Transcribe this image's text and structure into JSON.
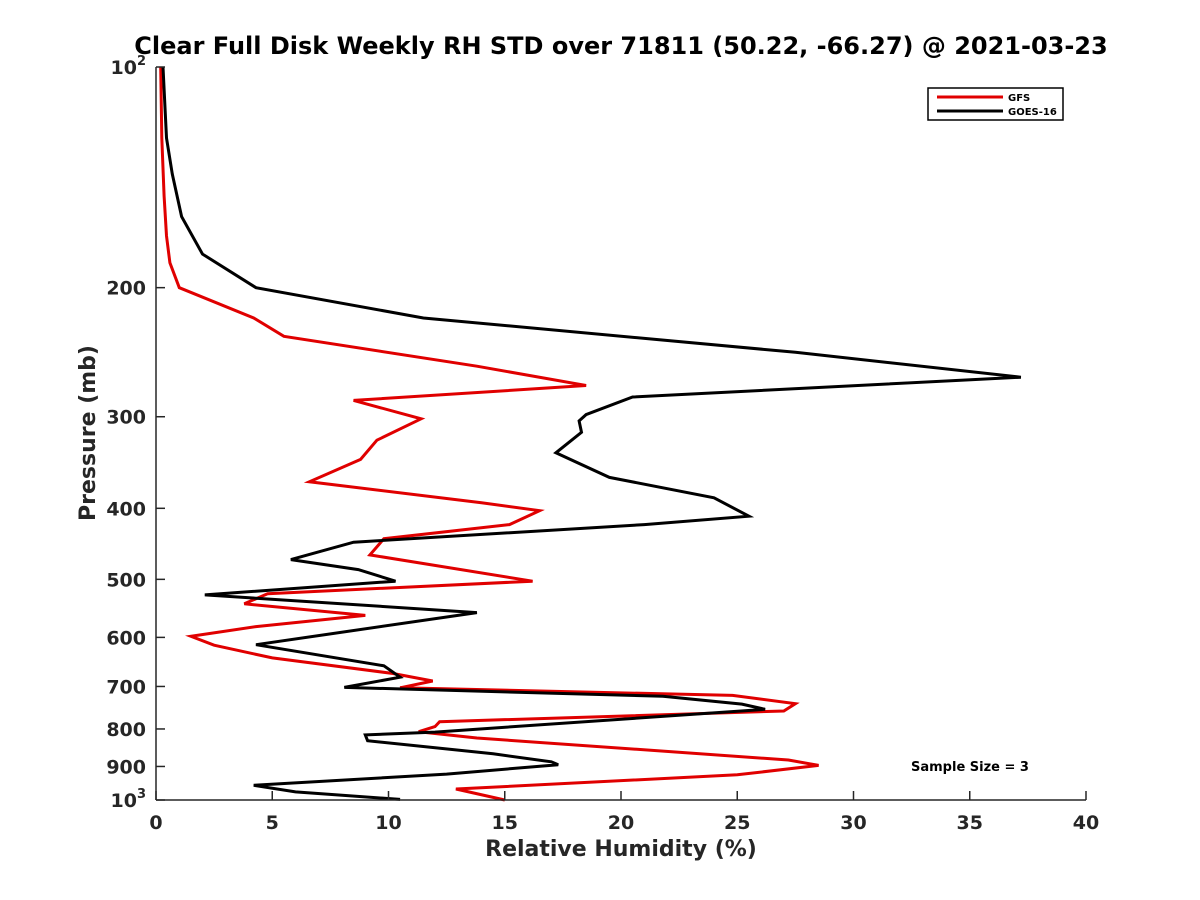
{
  "chart_data": {
    "type": "line",
    "title": "Clear Full Disk Weekly RH STD over 71811 (50.22, -66.27) @ 2021-03-23",
    "xlabel": "Relative Humidity (%)",
    "ylabel": "Pressure (mb)",
    "xlim": [
      0,
      40
    ],
    "ylim": [
      100,
      1000
    ],
    "yscale": "log",
    "yreversed": true,
    "grid": false,
    "legend_position": "top-right",
    "x_ticks": [
      0,
      5,
      10,
      15,
      20,
      25,
      30,
      35,
      40
    ],
    "x_tick_labels": [
      "0",
      "5",
      "10",
      "15",
      "20",
      "25",
      "30",
      "35",
      "40"
    ],
    "y_ticks": [
      100,
      200,
      300,
      400,
      500,
      600,
      700,
      800,
      900,
      1000
    ],
    "y_tick_labels": [
      {
        "base": "10",
        "exp": "2"
      },
      {
        "base": "200"
      },
      {
        "base": "300"
      },
      {
        "base": "400"
      },
      {
        "base": "500"
      },
      {
        "base": "600"
      },
      {
        "base": "700"
      },
      {
        "base": "800"
      },
      {
        "base": "900"
      },
      {
        "base": "10",
        "exp": "3"
      }
    ],
    "annotation": "Sample Size = 3",
    "series": [
      {
        "name": "GFS",
        "color": "#e00000",
        "points": [
          [
            0.2,
            100
          ],
          [
            0.25,
            125
          ],
          [
            0.35,
            150
          ],
          [
            0.45,
            170
          ],
          [
            0.6,
            185
          ],
          [
            1.0,
            200
          ],
          [
            4.2,
            220
          ],
          [
            5.5,
            233
          ],
          [
            13.8,
            256
          ],
          [
            18.5,
            272
          ],
          [
            8.5,
            285
          ],
          [
            11.4,
            302
          ],
          [
            9.5,
            323
          ],
          [
            8.8,
            343
          ],
          [
            6.6,
            368
          ],
          [
            14.0,
            393
          ],
          [
            16.5,
            403
          ],
          [
            15.2,
            421
          ],
          [
            9.8,
            440
          ],
          [
            9.2,
            463
          ],
          [
            16.2,
            503
          ],
          [
            4.8,
            523
          ],
          [
            3.8,
            540
          ],
          [
            9.0,
            560
          ],
          [
            4.3,
            580
          ],
          [
            1.5,
            598
          ],
          [
            2.5,
            615
          ],
          [
            5.0,
            640
          ],
          [
            10.2,
            672
          ],
          [
            11.9,
            688
          ],
          [
            10.5,
            703
          ],
          [
            24.8,
            720
          ],
          [
            27.5,
            739
          ],
          [
            27.0,
            756
          ],
          [
            12.2,
            782
          ],
          [
            12.0,
            794
          ],
          [
            11.3,
            807
          ],
          [
            13.8,
            823
          ],
          [
            27.2,
            882
          ],
          [
            28.5,
            897
          ],
          [
            25.0,
            924
          ],
          [
            12.9,
            966
          ],
          [
            15.0,
            1000
          ]
        ]
      },
      {
        "name": "GOES-16",
        "color": "#000000",
        "points": [
          [
            0.3,
            100
          ],
          [
            0.45,
            125
          ],
          [
            0.7,
            140
          ],
          [
            1.1,
            160
          ],
          [
            2.0,
            180
          ],
          [
            4.3,
            200
          ],
          [
            11.5,
            220
          ],
          [
            27.5,
            245
          ],
          [
            37.2,
            265
          ],
          [
            20.5,
            282
          ],
          [
            18.5,
            298
          ],
          [
            18.2,
            304
          ],
          [
            18.3,
            315
          ],
          [
            17.2,
            336
          ],
          [
            19.5,
            363
          ],
          [
            24.0,
            387
          ],
          [
            25.5,
            410
          ],
          [
            21.0,
            421
          ],
          [
            8.5,
            445
          ],
          [
            5.8,
            470
          ],
          [
            8.7,
            485
          ],
          [
            10.3,
            503
          ],
          [
            2.1,
            525
          ],
          [
            13.8,
            555
          ],
          [
            4.3,
            614
          ],
          [
            9.8,
            656
          ],
          [
            10.5,
            680
          ],
          [
            8.1,
            702
          ],
          [
            21.8,
            722
          ],
          [
            25.2,
            740
          ],
          [
            26.2,
            752
          ],
          [
            12.0,
            808
          ],
          [
            9.0,
            815
          ],
          [
            9.1,
            830
          ],
          [
            14.5,
            865
          ],
          [
            17.0,
            887
          ],
          [
            17.3,
            895
          ],
          [
            12.5,
            922
          ],
          [
            4.2,
            955
          ],
          [
            6.0,
            975
          ],
          [
            10.5,
            998
          ]
        ]
      }
    ]
  }
}
